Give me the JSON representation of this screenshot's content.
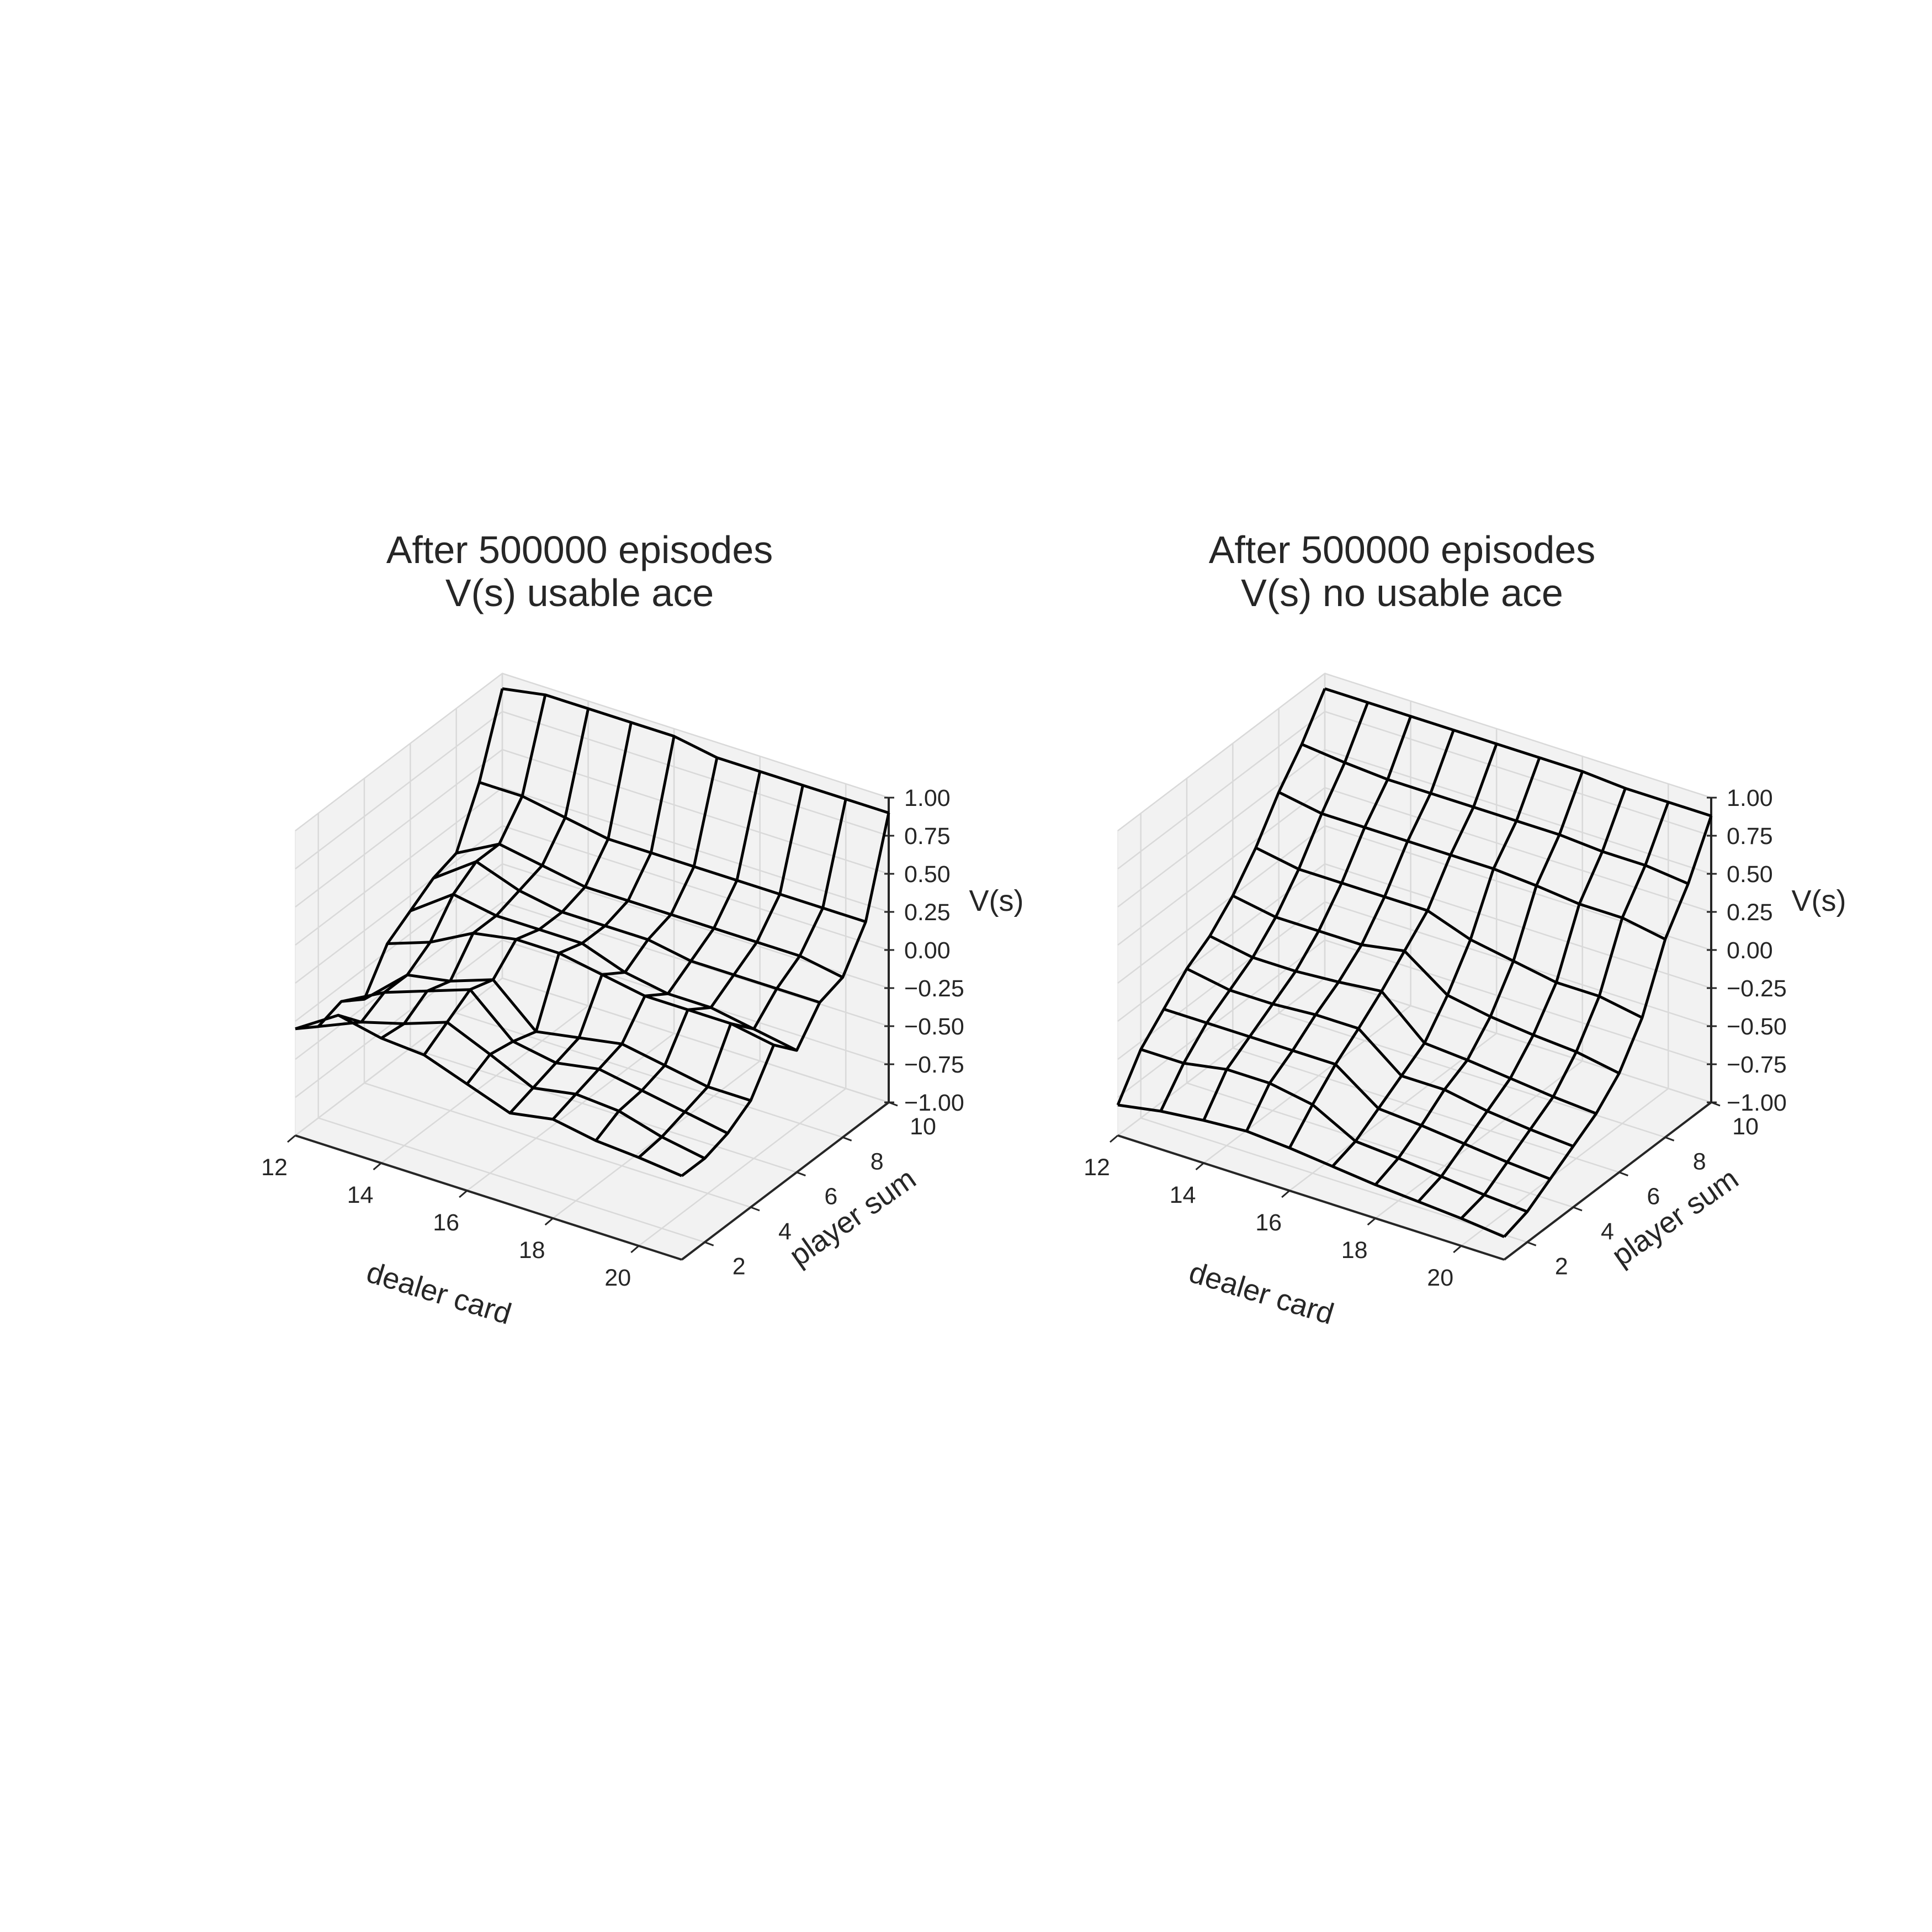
{
  "chart_data": [
    {
      "type": "surface",
      "title_line1": "After 500000 episodes",
      "title_line2": "V(s) usable ace",
      "xlabel": "dealer card",
      "ylabel": "player sum",
      "zlabel": "V(s)",
      "x_ticks": [
        "12",
        "14",
        "16",
        "18",
        "20"
      ],
      "y_ticks": [
        "2",
        "4",
        "6",
        "8",
        "10"
      ],
      "z_ticks": [
        "−1.00",
        "−0.75",
        "−0.50",
        "−0.25",
        "0.00",
        "0.25",
        "0.50",
        "0.75",
        "1.00"
      ],
      "xlim": [
        12,
        21
      ],
      "ylim": [
        1,
        10
      ],
      "zlim": [
        -1,
        1
      ],
      "x": [
        12,
        13,
        14,
        15,
        16,
        17,
        18,
        19,
        20,
        21
      ],
      "y": [
        1,
        2,
        3,
        4,
        5,
        6,
        7,
        8,
        9,
        10
      ],
      "z": [
        [
          -0.3,
          -0.12,
          -0.18,
          -0.2,
          -0.3,
          -0.4,
          -0.35,
          -0.4,
          -0.42,
          -0.45
        ],
        [
          -0.4,
          -0.28,
          -0.2,
          -0.1,
          -0.22,
          -0.35,
          -0.3,
          -0.32,
          -0.4,
          -0.45
        ],
        [
          -0.35,
          -0.2,
          -0.1,
          0.0,
          -0.25,
          -0.3,
          -0.25,
          -0.3,
          -0.35,
          -0.4
        ],
        [
          -0.45,
          -0.2,
          -0.15,
          -0.05,
          -0.3,
          -0.25,
          -0.2,
          -0.25,
          -0.3,
          -0.3
        ],
        [
          -0.2,
          -0.1,
          0.05,
          0.1,
          0.1,
          0.05,
          0.0,
          0.0,
          0.0,
          -0.05
        ],
        [
          -0.1,
          0.1,
          0.05,
          0.05,
          0.05,
          -0.05,
          -0.1,
          -0.1,
          -0.15,
          -0.2
        ],
        [
          0.0,
          0.2,
          0.1,
          0.05,
          0.05,
          0.05,
          0.0,
          0.0,
          0.0,
          0.0
        ],
        [
          0.05,
          0.2,
          0.15,
          0.1,
          0.1,
          0.1,
          0.1,
          0.1,
          0.1,
          0.05
        ],
        [
          0.4,
          0.4,
          0.35,
          0.3,
          0.3,
          0.3,
          0.3,
          0.3,
          0.3,
          0.3
        ],
        [
          0.9,
          0.95,
          0.95,
          0.95,
          0.95,
          0.9,
          0.9,
          0.9,
          0.9,
          0.9
        ]
      ]
    },
    {
      "type": "surface",
      "title_line1": "After 500000 episodes",
      "title_line2": "V(s) no usable ace",
      "xlabel": "dealer card",
      "ylabel": "player sum",
      "zlabel": "V(s)",
      "x_ticks": [
        "12",
        "14",
        "16",
        "18",
        "20"
      ],
      "y_ticks": [
        "2",
        "4",
        "6",
        "8",
        "10"
      ],
      "z_ticks": [
        "−1.00",
        "−0.75",
        "−0.50",
        "−0.25",
        "0.00",
        "0.25",
        "0.50",
        "0.75",
        "1.00"
      ],
      "xlim": [
        12,
        21
      ],
      "ylim": [
        1,
        10
      ],
      "zlim": [
        -1,
        1
      ],
      "x": [
        12,
        13,
        14,
        15,
        16,
        17,
        18,
        19,
        20,
        21
      ],
      "y": [
        1,
        2,
        3,
        4,
        5,
        6,
        7,
        8,
        9,
        10
      ],
      "z": [
        [
          -0.8,
          -0.75,
          -0.72,
          -0.7,
          -0.72,
          -0.75,
          -0.78,
          -0.8,
          -0.82,
          -0.85
        ],
        [
          -0.55,
          -0.55,
          -0.5,
          -0.5,
          -0.55,
          -0.7,
          -0.72,
          -0.75,
          -0.78,
          -0.8
        ],
        [
          -0.4,
          -0.4,
          -0.4,
          -0.4,
          -0.4,
          -0.6,
          -0.62,
          -0.65,
          -0.68,
          -0.7
        ],
        [
          -0.25,
          -0.3,
          -0.3,
          -0.28,
          -0.28,
          -0.5,
          -0.5,
          -0.55,
          -0.58,
          -0.6
        ],
        [
          -0.15,
          -0.2,
          -0.2,
          -0.18,
          -0.15,
          -0.4,
          -0.42,
          -0.45,
          -0.48,
          -0.5
        ],
        [
          0.0,
          -0.05,
          -0.05,
          -0.05,
          0.0,
          -0.2,
          -0.25,
          -0.28,
          -0.3,
          -0.35
        ],
        [
          0.2,
          0.15,
          0.15,
          0.15,
          0.15,
          0.05,
          0.0,
          -0.05,
          -0.05,
          -0.1
        ],
        [
          0.45,
          0.4,
          0.4,
          0.4,
          0.4,
          0.4,
          0.38,
          0.35,
          0.35,
          0.3
        ],
        [
          0.65,
          0.62,
          0.6,
          0.6,
          0.6,
          0.6,
          0.6,
          0.58,
          0.58,
          0.55
        ],
        [
          0.9,
          0.9,
          0.9,
          0.9,
          0.9,
          0.9,
          0.9,
          0.88,
          0.88,
          0.88
        ]
      ]
    }
  ]
}
